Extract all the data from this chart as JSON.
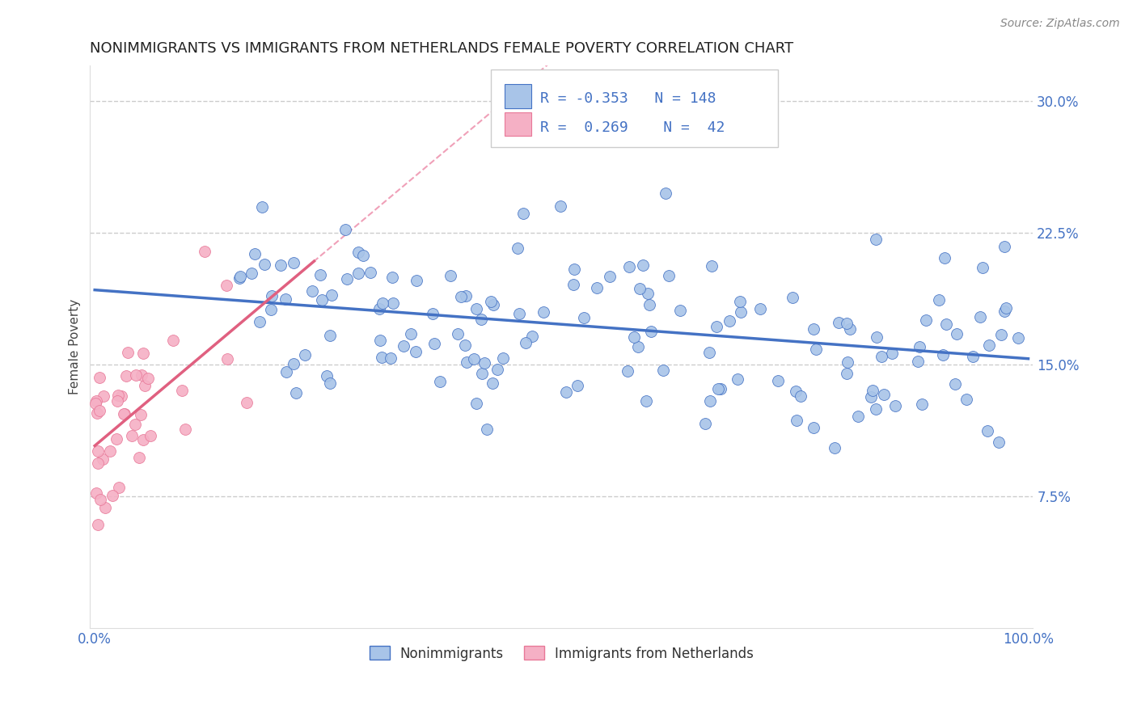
{
  "title": "NONIMMIGRANTS VS IMMIGRANTS FROM NETHERLANDS FEMALE POVERTY CORRELATION CHART",
  "source": "Source: ZipAtlas.com",
  "ylabel": "Female Poverty",
  "blue_R": "-0.353",
  "blue_N": "148",
  "pink_R": "0.269",
  "pink_N": "42",
  "blue_fill_color": "#a8c4e8",
  "pink_fill_color": "#f5b0c5",
  "blue_edge_color": "#4472c4",
  "pink_edge_color": "#e87898",
  "blue_line_color": "#4472c4",
  "pink_line_color": "#e06080",
  "pink_dash_color": "#f0a0b8",
  "grid_color": "#cccccc",
  "legend_blue_label": "Nonimmigrants",
  "legend_pink_label": "Immigrants from Netherlands",
  "background_color": "#ffffff",
  "annotation_color": "#4472c4",
  "title_fontsize": 13,
  "label_fontsize": 11,
  "tick_fontsize": 12,
  "source_fontsize": 10
}
